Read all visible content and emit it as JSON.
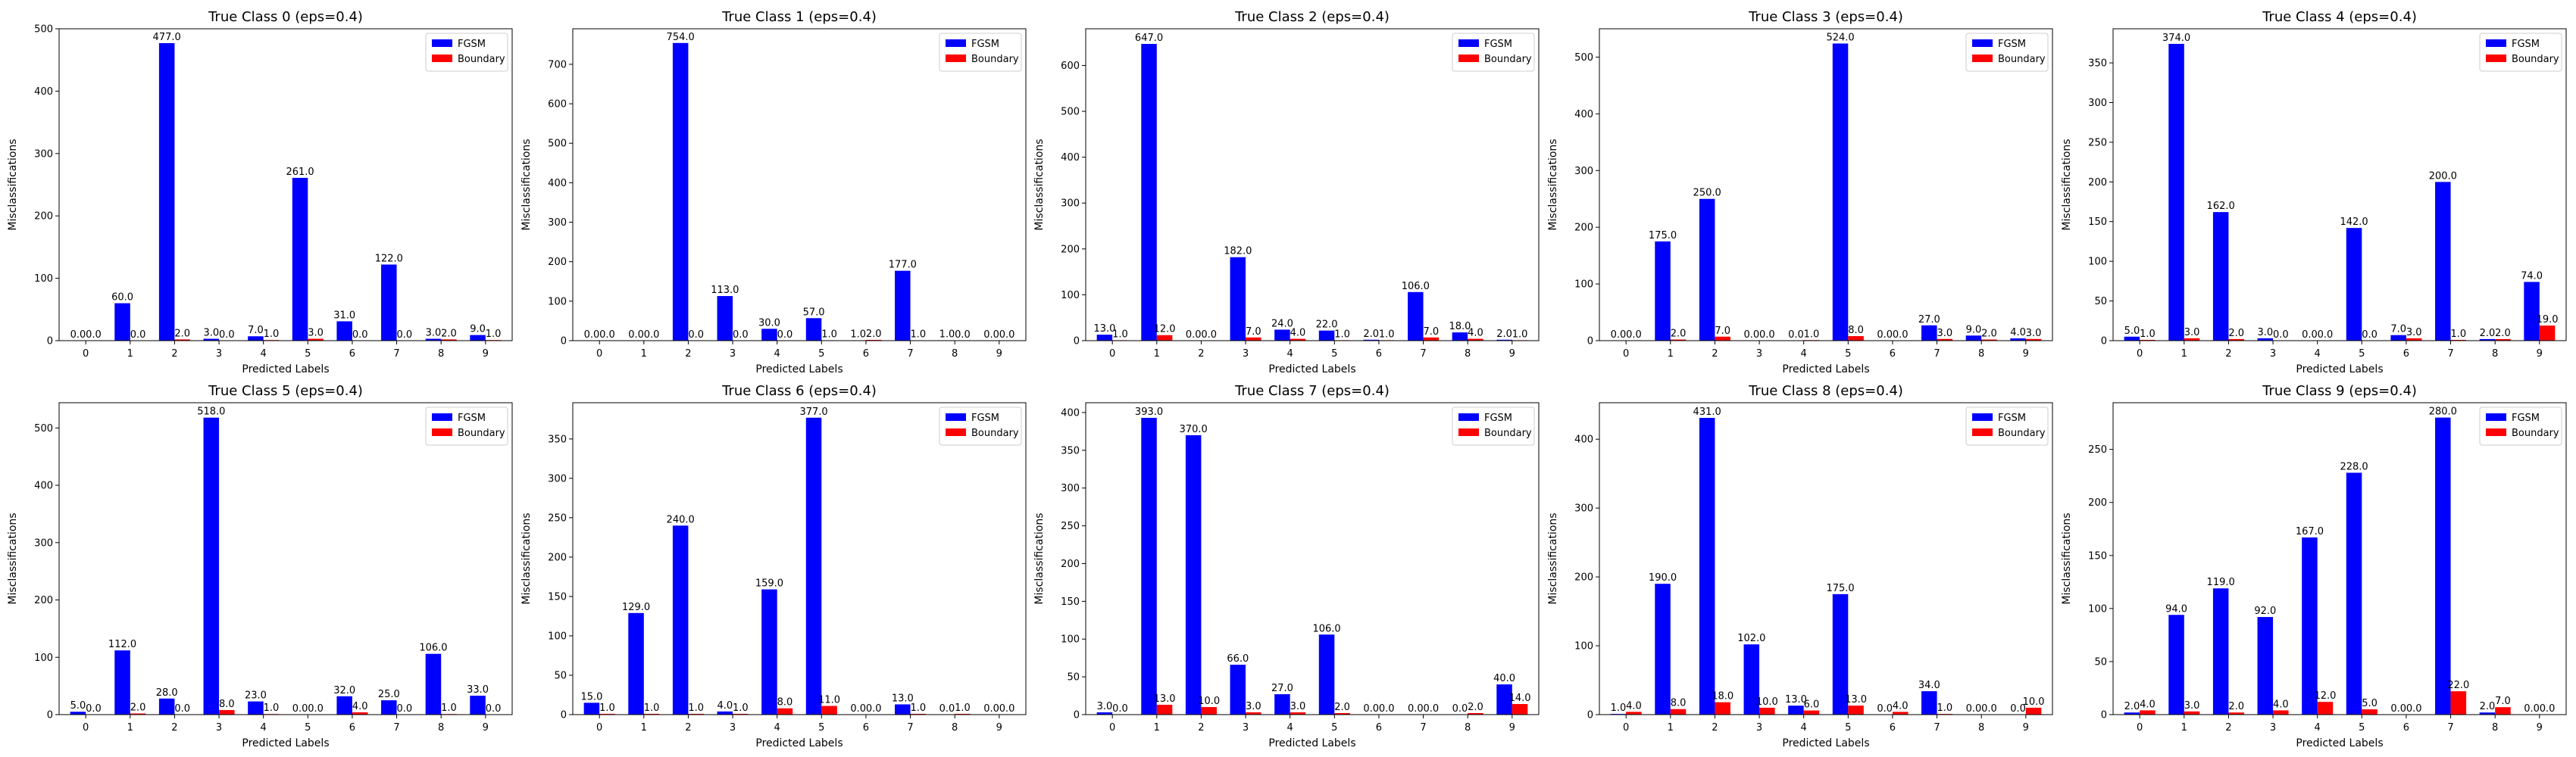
{
  "chart_data": [
    {
      "type": "bar",
      "title": "True Class 0 (eps=0.4)",
      "xlabel": "Predicted Labels",
      "ylabel": "Misclassifications",
      "categories": [
        "0",
        "1",
        "2",
        "3",
        "4",
        "5",
        "6",
        "7",
        "8",
        "9"
      ],
      "ylim": [
        0,
        500
      ],
      "yticks": [
        0,
        100,
        200,
        300,
        400,
        500
      ],
      "legend": "top-right",
      "series": [
        {
          "name": "FGSM",
          "color": "#0000ff",
          "values": [
            0,
            60,
            477,
            3,
            7,
            261,
            31,
            122,
            3,
            9
          ]
        },
        {
          "name": "Boundary",
          "color": "#ff0000",
          "values": [
            0,
            0,
            2,
            0,
            1,
            3,
            0,
            0,
            2,
            1
          ]
        }
      ]
    },
    {
      "type": "bar",
      "title": "True Class 1 (eps=0.4)",
      "xlabel": "Predicted Labels",
      "ylabel": "Misclassifications",
      "categories": [
        "0",
        "1",
        "2",
        "3",
        "4",
        "5",
        "6",
        "7",
        "8",
        "9"
      ],
      "ylim": [
        0,
        790
      ],
      "yticks": [
        0,
        100,
        200,
        300,
        400,
        500,
        600,
        700
      ],
      "legend": "top-right",
      "series": [
        {
          "name": "FGSM",
          "color": "#0000ff",
          "values": [
            0,
            0,
            754,
            113,
            30,
            57,
            1,
            177,
            1,
            0
          ]
        },
        {
          "name": "Boundary",
          "color": "#ff0000",
          "values": [
            0,
            0,
            0,
            0,
            0,
            1,
            2,
            1,
            0,
            0
          ]
        }
      ]
    },
    {
      "type": "bar",
      "title": "True Class 2 (eps=0.4)",
      "xlabel": "Predicted Labels",
      "ylabel": "Misclassifications",
      "categories": [
        "0",
        "1",
        "2",
        "3",
        "4",
        "5",
        "6",
        "7",
        "8",
        "9"
      ],
      "ylim": [
        0,
        680
      ],
      "yticks": [
        0,
        100,
        200,
        300,
        400,
        500,
        600
      ],
      "legend": "top-right",
      "series": [
        {
          "name": "FGSM",
          "color": "#0000ff",
          "values": [
            13,
            647,
            0,
            182,
            24,
            22,
            2,
            106,
            18,
            2
          ]
        },
        {
          "name": "Boundary",
          "color": "#ff0000",
          "values": [
            1,
            12,
            0,
            7,
            4,
            1,
            1,
            7,
            4,
            1
          ]
        }
      ]
    },
    {
      "type": "bar",
      "title": "True Class 3 (eps=0.4)",
      "xlabel": "Predicted Labels",
      "ylabel": "Misclassifications",
      "categories": [
        "0",
        "1",
        "2",
        "3",
        "4",
        "5",
        "6",
        "7",
        "8",
        "9"
      ],
      "ylim": [
        0,
        550
      ],
      "yticks": [
        0,
        100,
        200,
        300,
        400,
        500
      ],
      "legend": "top-right",
      "series": [
        {
          "name": "FGSM",
          "color": "#0000ff",
          "values": [
            0,
            175,
            250,
            0,
            0,
            524,
            0,
            27,
            9,
            4
          ]
        },
        {
          "name": "Boundary",
          "color": "#ff0000",
          "values": [
            0,
            2,
            7,
            0,
            1,
            8,
            0,
            3,
            2,
            3
          ]
        }
      ]
    },
    {
      "type": "bar",
      "title": "True Class 4 (eps=0.4)",
      "xlabel": "Predicted Labels",
      "ylabel": "Misclassifications",
      "categories": [
        "0",
        "1",
        "2",
        "3",
        "4",
        "5",
        "6",
        "7",
        "8",
        "9"
      ],
      "ylim": [
        0,
        393
      ],
      "yticks": [
        0,
        50,
        100,
        150,
        200,
        250,
        300,
        350
      ],
      "legend": "top-right",
      "series": [
        {
          "name": "FGSM",
          "color": "#0000ff",
          "values": [
            5,
            374,
            162,
            3,
            0,
            142,
            7,
            200,
            2,
            74
          ]
        },
        {
          "name": "Boundary",
          "color": "#ff0000",
          "values": [
            1,
            3,
            2,
            0,
            0,
            0,
            3,
            1,
            2,
            19
          ]
        }
      ]
    },
    {
      "type": "bar",
      "title": "True Class 5 (eps=0.4)",
      "xlabel": "Predicted Labels",
      "ylabel": "Misclassifications",
      "categories": [
        "0",
        "1",
        "2",
        "3",
        "4",
        "5",
        "6",
        "7",
        "8",
        "9"
      ],
      "ylim": [
        0,
        544
      ],
      "yticks": [
        0,
        100,
        200,
        300,
        400,
        500
      ],
      "legend": "top-right",
      "series": [
        {
          "name": "FGSM",
          "color": "#0000ff",
          "values": [
            5,
            112,
            28,
            518,
            23,
            0,
            32,
            25,
            106,
            33
          ]
        },
        {
          "name": "Boundary",
          "color": "#ff0000",
          "values": [
            0,
            2,
            0,
            8,
            1,
            0,
            4,
            0,
            1,
            0
          ]
        }
      ]
    },
    {
      "type": "bar",
      "title": "True Class 6 (eps=0.4)",
      "xlabel": "Predicted Labels",
      "ylabel": "Misclassifications",
      "categories": [
        "0",
        "1",
        "2",
        "3",
        "4",
        "5",
        "6",
        "7",
        "8",
        "9"
      ],
      "ylim": [
        0,
        396
      ],
      "yticks": [
        0,
        50,
        100,
        150,
        200,
        250,
        300,
        350
      ],
      "legend": "top-right",
      "series": [
        {
          "name": "FGSM",
          "color": "#0000ff",
          "values": [
            15,
            129,
            240,
            4,
            159,
            377,
            0,
            13,
            0,
            0
          ]
        },
        {
          "name": "Boundary",
          "color": "#ff0000",
          "values": [
            1,
            1,
            1,
            1,
            8,
            11,
            0,
            1,
            1,
            0
          ]
        }
      ]
    },
    {
      "type": "bar",
      "title": "True Class 7 (eps=0.4)",
      "xlabel": "Predicted Labels",
      "ylabel": "Misclassifications",
      "categories": [
        "0",
        "1",
        "2",
        "3",
        "4",
        "5",
        "6",
        "7",
        "8",
        "9"
      ],
      "ylim": [
        0,
        413
      ],
      "yticks": [
        0,
        50,
        100,
        150,
        200,
        250,
        300,
        350,
        400
      ],
      "legend": "top-right",
      "series": [
        {
          "name": "FGSM",
          "color": "#0000ff",
          "values": [
            3,
            393,
            370,
            66,
            27,
            106,
            0,
            0,
            0,
            40
          ]
        },
        {
          "name": "Boundary",
          "color": "#ff0000",
          "values": [
            0,
            13,
            10,
            3,
            3,
            2,
            0,
            0,
            2,
            14
          ]
        }
      ]
    },
    {
      "type": "bar",
      "title": "True Class 8 (eps=0.4)",
      "xlabel": "Predicted Labels",
      "ylabel": "Misclassifications",
      "categories": [
        "0",
        "1",
        "2",
        "3",
        "4",
        "5",
        "6",
        "7",
        "8",
        "9"
      ],
      "ylim": [
        0,
        453
      ],
      "yticks": [
        0,
        100,
        200,
        300,
        400
      ],
      "legend": "top-right",
      "series": [
        {
          "name": "FGSM",
          "color": "#0000ff",
          "values": [
            1,
            190,
            431,
            102,
            13,
            175,
            0,
            34,
            0,
            0
          ]
        },
        {
          "name": "Boundary",
          "color": "#ff0000",
          "values": [
            4,
            8,
            18,
            10,
            6,
            13,
            4,
            1,
            0,
            10
          ]
        }
      ]
    },
    {
      "type": "bar",
      "title": "True Class 9 (eps=0.4)",
      "xlabel": "Predicted Labels",
      "ylabel": "Misclassifications",
      "categories": [
        "0",
        "1",
        "2",
        "3",
        "4",
        "5",
        "6",
        "7",
        "8",
        "9"
      ],
      "ylim": [
        0,
        294
      ],
      "yticks": [
        0,
        50,
        100,
        150,
        200,
        250
      ],
      "legend": "top-right",
      "series": [
        {
          "name": "FGSM",
          "color": "#0000ff",
          "values": [
            2,
            94,
            119,
            92,
            167,
            228,
            0,
            280,
            2,
            0
          ]
        },
        {
          "name": "Boundary",
          "color": "#ff0000",
          "values": [
            4,
            3,
            2,
            4,
            12,
            5,
            0,
            22,
            7,
            0
          ]
        }
      ]
    }
  ]
}
